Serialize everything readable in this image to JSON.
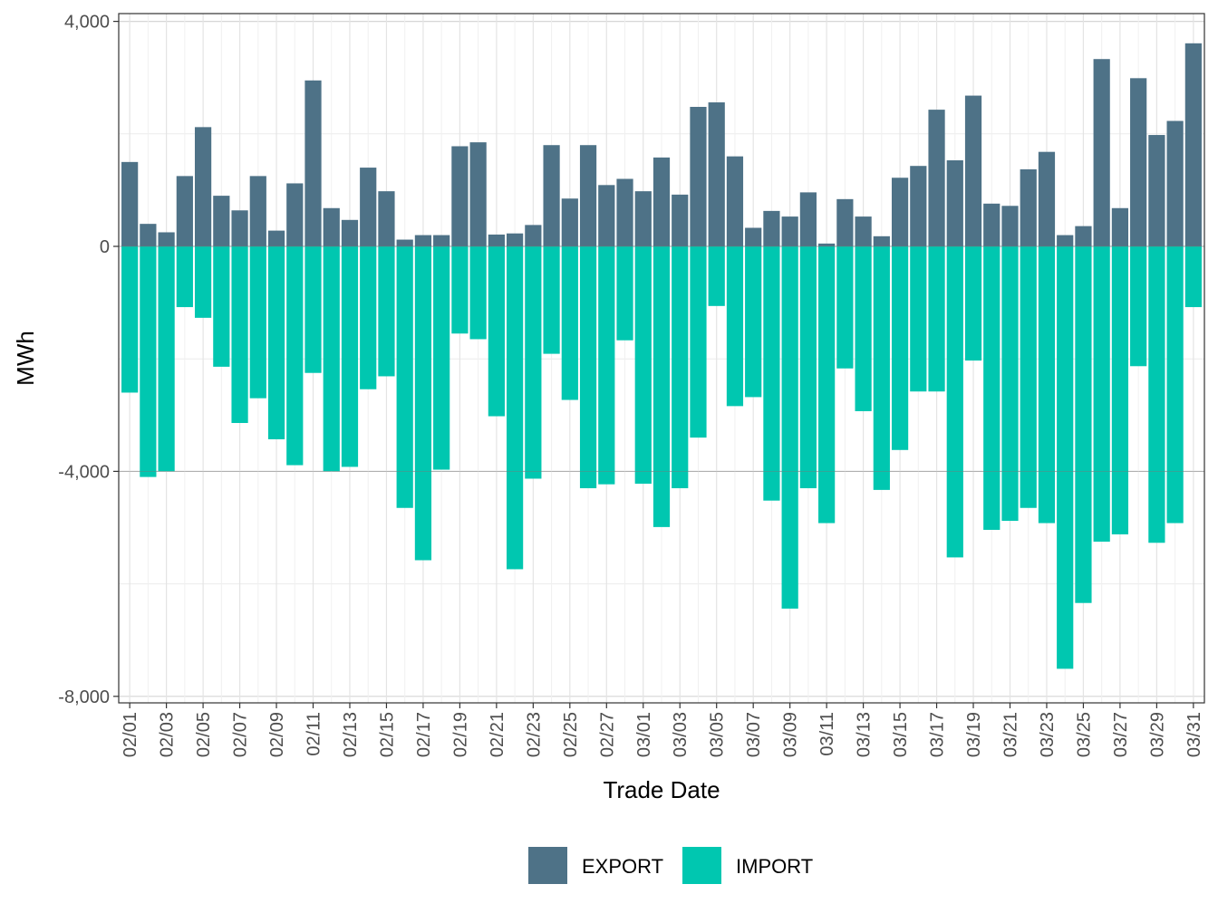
{
  "chart_data": {
    "type": "bar",
    "stacked": true,
    "title": "",
    "xlabel": "Trade Date",
    "ylabel": "MWh",
    "ylim": [
      -8000,
      4000
    ],
    "yticks": [
      4000,
      0,
      -4000,
      -8000
    ],
    "ytick_labels": [
      "4,000",
      "0",
      "-4,000",
      "-8,000"
    ],
    "categories": [
      "02/01",
      "02/02",
      "02/03",
      "02/04",
      "02/05",
      "02/06",
      "02/07",
      "02/08",
      "02/09",
      "02/10",
      "02/11",
      "02/12",
      "02/13",
      "02/14",
      "02/15",
      "02/16",
      "02/17",
      "02/18",
      "02/19",
      "02/20",
      "02/21",
      "02/22",
      "02/23",
      "02/24",
      "02/25",
      "02/26",
      "02/27",
      "02/28",
      "03/01",
      "03/02",
      "03/03",
      "03/04",
      "03/05",
      "03/06",
      "03/07",
      "03/08",
      "03/09",
      "03/10",
      "03/11",
      "03/12",
      "03/13",
      "03/14",
      "03/15",
      "03/16",
      "03/17",
      "03/18",
      "03/19",
      "03/20",
      "03/21",
      "03/22",
      "03/23",
      "03/24",
      "03/25",
      "03/26",
      "03/27",
      "03/28",
      "03/29",
      "03/30",
      "03/31"
    ],
    "xtick_labels": [
      "02/01",
      "02/03",
      "02/05",
      "02/07",
      "02/09",
      "02/11",
      "02/13",
      "02/15",
      "02/17",
      "02/19",
      "02/21",
      "02/23",
      "02/25",
      "02/27",
      "03/01",
      "03/03",
      "03/05",
      "03/07",
      "03/09",
      "03/11",
      "03/13",
      "03/15",
      "03/17",
      "03/19",
      "03/21",
      "03/23",
      "03/25",
      "03/27",
      "03/29",
      "03/31"
    ],
    "series": [
      {
        "name": "EXPORT",
        "color": "#4e7287",
        "values": [
          1500,
          400,
          250,
          1250,
          2120,
          900,
          640,
          1250,
          280,
          1120,
          2950,
          680,
          470,
          1400,
          980,
          120,
          200,
          200,
          1780,
          1850,
          210,
          230,
          380,
          1800,
          850,
          1800,
          1090,
          1200,
          980,
          1580,
          920,
          2480,
          2560,
          1600,
          330,
          630,
          530,
          960,
          50,
          840,
          530,
          180,
          1220,
          1430,
          2430,
          1530,
          2680,
          760,
          720,
          1370,
          1680,
          200,
          360,
          3330,
          680,
          2990,
          1980,
          2230,
          3610
        ]
      },
      {
        "name": "IMPORT",
        "color": "#00c7b0",
        "values": [
          -2600,
          -4100,
          -4000,
          -1080,
          -1270,
          -2140,
          -3140,
          -2700,
          -3430,
          -3890,
          -2250,
          -4000,
          -3920,
          -2540,
          -2310,
          -4650,
          -5580,
          -3970,
          -1550,
          -1650,
          -3020,
          -5740,
          -4130,
          -1910,
          -2730,
          -4300,
          -4230,
          -1670,
          -4220,
          -4990,
          -4300,
          -3400,
          -1060,
          -2840,
          -2680,
          -4520,
          -6440,
          -4300,
          -4920,
          -2170,
          -2930,
          -4330,
          -3620,
          -2580,
          -2580,
          -5530,
          -2030,
          -5040,
          -4880,
          -4650,
          -4920,
          -7510,
          -6340,
          -5250,
          -5120,
          -2130,
          -5270,
          -4920,
          -1080
        ]
      }
    ],
    "legend_position": "bottom",
    "grid": true
  },
  "legend": {
    "items": [
      {
        "label": "EXPORT",
        "color": "#4e7287"
      },
      {
        "label": "IMPORT",
        "color": "#00c7b0"
      }
    ]
  }
}
